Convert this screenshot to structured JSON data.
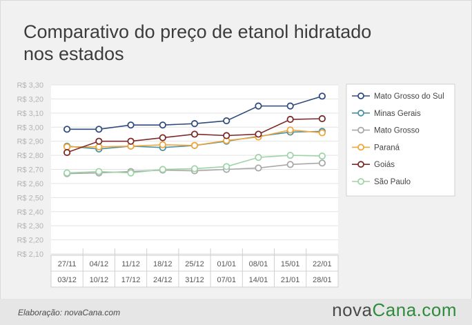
{
  "header": {
    "title_line1": "Comparativo do preço de etanol hidratado",
    "title_line2": "nos estados"
  },
  "footer": {
    "credit": "Elaboração: novaCana.com",
    "brand_part1": "nova",
    "brand_part2": "Cana.com"
  },
  "colors": {
    "Mato Grosso do Sul": "#2f4b7c",
    "Minas Gerais": "#4a90a4",
    "Mato Grosso": "#a8a8a8",
    "Paraná": "#f0a73a",
    "Goiás": "#7b2a2a",
    "São Paulo": "#9fd4a8",
    "brand_green": "#2e8b3e"
  },
  "chart_data": {
    "type": "line",
    "title": "Comparativo do preço de etanol hidratado nos estados",
    "categories_top": [
      "27/11",
      "04/12",
      "11/12",
      "18/12",
      "25/12",
      "01/01",
      "08/01",
      "15/01",
      "22/01"
    ],
    "categories_bottom": [
      "03/12",
      "10/12",
      "17/12",
      "24/12",
      "31/12",
      "07/01",
      "14/01",
      "21/01",
      "28/01"
    ],
    "ylim": [
      2.1,
      3.3
    ],
    "yticks": [
      2.1,
      2.2,
      2.3,
      2.4,
      2.5,
      2.6,
      2.7,
      2.8,
      2.9,
      3.0,
      3.1,
      3.2,
      3.3
    ],
    "ytick_labels": [
      "R$ 2,10",
      "R$ 2,20",
      "R$ 2,30",
      "R$ 2,40",
      "R$ 2,50",
      "R$ 2,60",
      "R$ 2,70",
      "R$ 2,80",
      "R$ 2,90",
      "R$ 3,00",
      "R$ 3,10",
      "R$ 3,20",
      "R$ 3,30"
    ],
    "legend_position": "right",
    "series": [
      {
        "name": "Mato Grosso do Sul",
        "values": [
          2.985,
          2.985,
          3.015,
          3.015,
          3.025,
          3.045,
          3.15,
          3.15,
          3.22
        ]
      },
      {
        "name": "Minas Gerais",
        "values": [
          2.865,
          2.845,
          2.865,
          2.855,
          2.87,
          2.9,
          2.935,
          2.965,
          2.97
        ]
      },
      {
        "name": "Mato Grosso",
        "values": [
          2.67,
          2.675,
          2.685,
          2.695,
          2.69,
          2.7,
          2.71,
          2.735,
          2.745
        ]
      },
      {
        "name": "Paraná",
        "values": [
          2.86,
          2.86,
          2.865,
          2.875,
          2.87,
          2.905,
          2.93,
          2.98,
          2.96
        ]
      },
      {
        "name": "Goiás",
        "values": [
          2.82,
          2.9,
          2.9,
          2.925,
          2.95,
          2.94,
          2.95,
          3.055,
          3.06
        ]
      },
      {
        "name": "São Paulo",
        "values": [
          2.675,
          2.685,
          2.675,
          2.7,
          2.705,
          2.72,
          2.785,
          2.8,
          2.795
        ]
      }
    ]
  }
}
